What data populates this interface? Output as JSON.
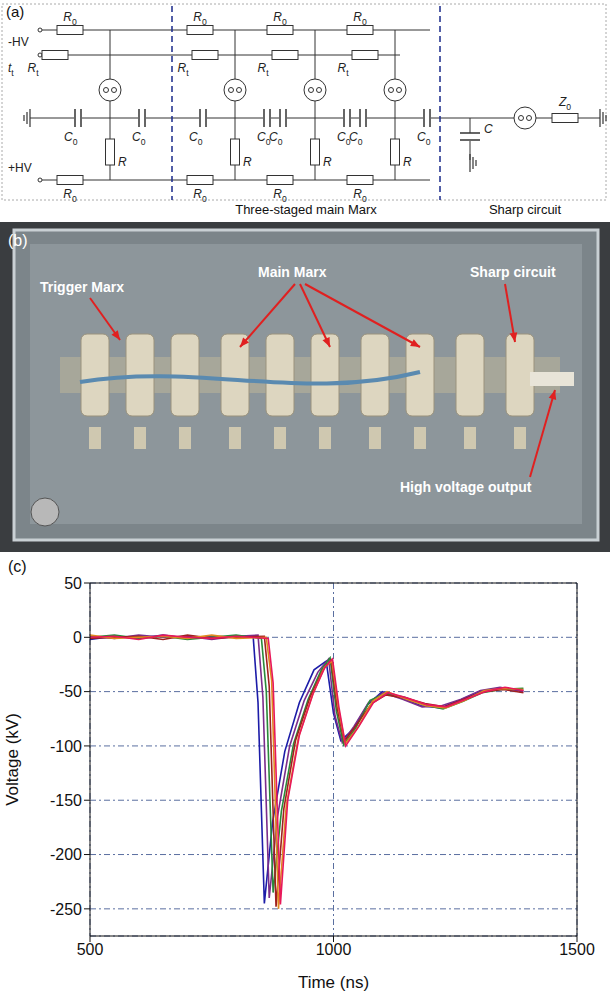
{
  "diagram": {
    "label": "(a)",
    "inputs": [
      "-HV",
      "tt",
      "+HV"
    ],
    "resistor_top": "R0",
    "resistor_trigger": "Rt",
    "capacitor": "C0",
    "resistor": "R",
    "resistor_bottom": "R0",
    "sharp_capacitor": "C",
    "load": "Z0",
    "sections": [
      "Three-staged main Marx",
      "Sharp circuit"
    ]
  },
  "photo": {
    "label": "(b)",
    "annotations": [
      "Trigger Marx",
      "Main Marx",
      "Sharp circuit",
      "High voltage output"
    ]
  },
  "chart_data": {
    "type": "line",
    "title": "(c)",
    "x_label": "Time (ns)",
    "y_label": "Voltage (kV)",
    "xlim": [
      500,
      1500
    ],
    "xticks": [
      500,
      1000,
      1500
    ],
    "ylim": [
      -275,
      50
    ],
    "yticks": [
      50,
      0,
      -50,
      -100,
      -150,
      -200,
      -250
    ],
    "grid": true,
    "series": [
      {
        "color": "#1c1ca8",
        "x": [
          500,
          550,
          600,
          650,
          700,
          750,
          800,
          835,
          845,
          858,
          875,
          900,
          930,
          960,
          985,
          1000,
          1015,
          1040,
          1070,
          1100,
          1140,
          1180,
          1220,
          1260,
          1300,
          1340,
          1390
        ],
        "values": [
          -2,
          1,
          -1,
          2,
          -1,
          1,
          0,
          1,
          -60,
          -245,
          -170,
          -105,
          -60,
          -30,
          -22,
          -70,
          -95,
          -85,
          -62,
          -50,
          -56,
          -63,
          -65,
          -58,
          -50,
          -47,
          -49
        ]
      },
      {
        "color": "#7b2d8b",
        "x": [
          500,
          550,
          600,
          650,
          700,
          750,
          800,
          845,
          855,
          868,
          885,
          910,
          940,
          968,
          990,
          1003,
          1018,
          1042,
          1072,
          1102,
          1142,
          1182,
          1222,
          1262,
          1302,
          1342,
          1390
        ],
        "values": [
          1,
          -1,
          2,
          0,
          1,
          -2,
          1,
          2,
          -55,
          -240,
          -165,
          -100,
          -58,
          -32,
          -20,
          -72,
          -97,
          -82,
          -60,
          -51,
          -57,
          -64,
          -63,
          -57,
          -49,
          -46,
          -50
        ]
      },
      {
        "color": "#2a8a3a",
        "x": [
          500,
          550,
          600,
          650,
          700,
          750,
          800,
          852,
          862,
          876,
          893,
          918,
          948,
          975,
          993,
          1006,
          1021,
          1045,
          1075,
          1105,
          1145,
          1185,
          1225,
          1265,
          1305,
          1345,
          1390
        ],
        "values": [
          0,
          2,
          -1,
          1,
          -2,
          0,
          2,
          -1,
          -50,
          -235,
          -160,
          -98,
          -57,
          -30,
          -19,
          -68,
          -99,
          -84,
          -58,
          -52,
          -55,
          -62,
          -66,
          -59,
          -51,
          -48,
          -47
        ]
      },
      {
        "color": "#a02020",
        "x": [
          500,
          550,
          600,
          650,
          700,
          750,
          800,
          858,
          868,
          882,
          898,
          922,
          952,
          978,
          995,
          1008,
          1022,
          1048,
          1078,
          1108,
          1148,
          1188,
          1228,
          1268,
          1308,
          1348,
          1390
        ],
        "values": [
          -1,
          0,
          1,
          -2,
          2,
          -1,
          0,
          1,
          -45,
          -248,
          -158,
          -95,
          -55,
          -30,
          -21,
          -66,
          -96,
          -80,
          -61,
          -53,
          -56,
          -61,
          -64,
          -57,
          -50,
          -48,
          -51
        ]
      },
      {
        "color": "#e08a20",
        "x": [
          500,
          550,
          600,
          650,
          700,
          750,
          800,
          862,
          873,
          887,
          903,
          928,
          956,
          981,
          997,
          1010,
          1024,
          1050,
          1080,
          1110,
          1150,
          1190,
          1230,
          1270,
          1310,
          1350,
          1390
        ],
        "values": [
          2,
          -1,
          0,
          1,
          -1,
          2,
          -1,
          0,
          -40,
          -250,
          -155,
          -92,
          -54,
          -28,
          -22,
          -65,
          -98,
          -83,
          -59,
          -50,
          -57,
          -63,
          -65,
          -58,
          -49,
          -47,
          -48
        ]
      },
      {
        "color": "#e8185a",
        "x": [
          500,
          550,
          600,
          650,
          700,
          750,
          800,
          866,
          876,
          891,
          906,
          930,
          958,
          983,
          998,
          1011,
          1025,
          1052,
          1082,
          1112,
          1152,
          1192,
          1232,
          1272,
          1312,
          1352,
          1390
        ],
        "values": [
          0,
          1,
          -2,
          2,
          0,
          -1,
          1,
          -1,
          -42,
          -246,
          -150,
          -90,
          -52,
          -27,
          -20,
          -64,
          -100,
          -82,
          -60,
          -51,
          -56,
          -62,
          -64,
          -57,
          -50,
          -46,
          -49
        ]
      }
    ]
  }
}
